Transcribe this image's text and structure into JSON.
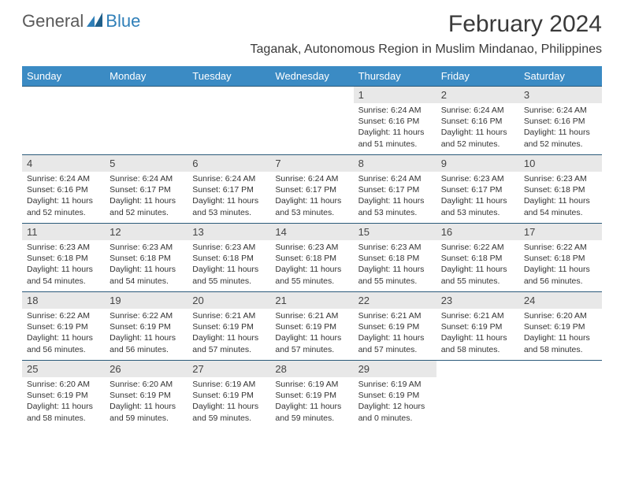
{
  "logo": {
    "general": "General",
    "blue": "Blue"
  },
  "title": "February 2024",
  "location": "Taganak, Autonomous Region in Muslim Mindanao, Philippines",
  "colors": {
    "header_bg": "#3b8bc4",
    "header_text": "#ffffff",
    "daynum_bg": "#e8e8e8",
    "week_border": "#2b5a7a",
    "text": "#333333",
    "logo_gray": "#5a5a5a",
    "logo_blue": "#2f7fb8"
  },
  "days_of_week": [
    "Sunday",
    "Monday",
    "Tuesday",
    "Wednesday",
    "Thursday",
    "Friday",
    "Saturday"
  ],
  "weeks": [
    [
      {
        "n": "",
        "sr": "",
        "ss": "",
        "dl": ""
      },
      {
        "n": "",
        "sr": "",
        "ss": "",
        "dl": ""
      },
      {
        "n": "",
        "sr": "",
        "ss": "",
        "dl": ""
      },
      {
        "n": "",
        "sr": "",
        "ss": "",
        "dl": ""
      },
      {
        "n": "1",
        "sr": "Sunrise: 6:24 AM",
        "ss": "Sunset: 6:16 PM",
        "dl": "Daylight: 11 hours and 51 minutes."
      },
      {
        "n": "2",
        "sr": "Sunrise: 6:24 AM",
        "ss": "Sunset: 6:16 PM",
        "dl": "Daylight: 11 hours and 52 minutes."
      },
      {
        "n": "3",
        "sr": "Sunrise: 6:24 AM",
        "ss": "Sunset: 6:16 PM",
        "dl": "Daylight: 11 hours and 52 minutes."
      }
    ],
    [
      {
        "n": "4",
        "sr": "Sunrise: 6:24 AM",
        "ss": "Sunset: 6:16 PM",
        "dl": "Daylight: 11 hours and 52 minutes."
      },
      {
        "n": "5",
        "sr": "Sunrise: 6:24 AM",
        "ss": "Sunset: 6:17 PM",
        "dl": "Daylight: 11 hours and 52 minutes."
      },
      {
        "n": "6",
        "sr": "Sunrise: 6:24 AM",
        "ss": "Sunset: 6:17 PM",
        "dl": "Daylight: 11 hours and 53 minutes."
      },
      {
        "n": "7",
        "sr": "Sunrise: 6:24 AM",
        "ss": "Sunset: 6:17 PM",
        "dl": "Daylight: 11 hours and 53 minutes."
      },
      {
        "n": "8",
        "sr": "Sunrise: 6:24 AM",
        "ss": "Sunset: 6:17 PM",
        "dl": "Daylight: 11 hours and 53 minutes."
      },
      {
        "n": "9",
        "sr": "Sunrise: 6:23 AM",
        "ss": "Sunset: 6:17 PM",
        "dl": "Daylight: 11 hours and 53 minutes."
      },
      {
        "n": "10",
        "sr": "Sunrise: 6:23 AM",
        "ss": "Sunset: 6:18 PM",
        "dl": "Daylight: 11 hours and 54 minutes."
      }
    ],
    [
      {
        "n": "11",
        "sr": "Sunrise: 6:23 AM",
        "ss": "Sunset: 6:18 PM",
        "dl": "Daylight: 11 hours and 54 minutes."
      },
      {
        "n": "12",
        "sr": "Sunrise: 6:23 AM",
        "ss": "Sunset: 6:18 PM",
        "dl": "Daylight: 11 hours and 54 minutes."
      },
      {
        "n": "13",
        "sr": "Sunrise: 6:23 AM",
        "ss": "Sunset: 6:18 PM",
        "dl": "Daylight: 11 hours and 55 minutes."
      },
      {
        "n": "14",
        "sr": "Sunrise: 6:23 AM",
        "ss": "Sunset: 6:18 PM",
        "dl": "Daylight: 11 hours and 55 minutes."
      },
      {
        "n": "15",
        "sr": "Sunrise: 6:23 AM",
        "ss": "Sunset: 6:18 PM",
        "dl": "Daylight: 11 hours and 55 minutes."
      },
      {
        "n": "16",
        "sr": "Sunrise: 6:22 AM",
        "ss": "Sunset: 6:18 PM",
        "dl": "Daylight: 11 hours and 55 minutes."
      },
      {
        "n": "17",
        "sr": "Sunrise: 6:22 AM",
        "ss": "Sunset: 6:18 PM",
        "dl": "Daylight: 11 hours and 56 minutes."
      }
    ],
    [
      {
        "n": "18",
        "sr": "Sunrise: 6:22 AM",
        "ss": "Sunset: 6:19 PM",
        "dl": "Daylight: 11 hours and 56 minutes."
      },
      {
        "n": "19",
        "sr": "Sunrise: 6:22 AM",
        "ss": "Sunset: 6:19 PM",
        "dl": "Daylight: 11 hours and 56 minutes."
      },
      {
        "n": "20",
        "sr": "Sunrise: 6:21 AM",
        "ss": "Sunset: 6:19 PM",
        "dl": "Daylight: 11 hours and 57 minutes."
      },
      {
        "n": "21",
        "sr": "Sunrise: 6:21 AM",
        "ss": "Sunset: 6:19 PM",
        "dl": "Daylight: 11 hours and 57 minutes."
      },
      {
        "n": "22",
        "sr": "Sunrise: 6:21 AM",
        "ss": "Sunset: 6:19 PM",
        "dl": "Daylight: 11 hours and 57 minutes."
      },
      {
        "n": "23",
        "sr": "Sunrise: 6:21 AM",
        "ss": "Sunset: 6:19 PM",
        "dl": "Daylight: 11 hours and 58 minutes."
      },
      {
        "n": "24",
        "sr": "Sunrise: 6:20 AM",
        "ss": "Sunset: 6:19 PM",
        "dl": "Daylight: 11 hours and 58 minutes."
      }
    ],
    [
      {
        "n": "25",
        "sr": "Sunrise: 6:20 AM",
        "ss": "Sunset: 6:19 PM",
        "dl": "Daylight: 11 hours and 58 minutes."
      },
      {
        "n": "26",
        "sr": "Sunrise: 6:20 AM",
        "ss": "Sunset: 6:19 PM",
        "dl": "Daylight: 11 hours and 59 minutes."
      },
      {
        "n": "27",
        "sr": "Sunrise: 6:19 AM",
        "ss": "Sunset: 6:19 PM",
        "dl": "Daylight: 11 hours and 59 minutes."
      },
      {
        "n": "28",
        "sr": "Sunrise: 6:19 AM",
        "ss": "Sunset: 6:19 PM",
        "dl": "Daylight: 11 hours and 59 minutes."
      },
      {
        "n": "29",
        "sr": "Sunrise: 6:19 AM",
        "ss": "Sunset: 6:19 PM",
        "dl": "Daylight: 12 hours and 0 minutes."
      },
      {
        "n": "",
        "sr": "",
        "ss": "",
        "dl": ""
      },
      {
        "n": "",
        "sr": "",
        "ss": "",
        "dl": ""
      }
    ]
  ]
}
